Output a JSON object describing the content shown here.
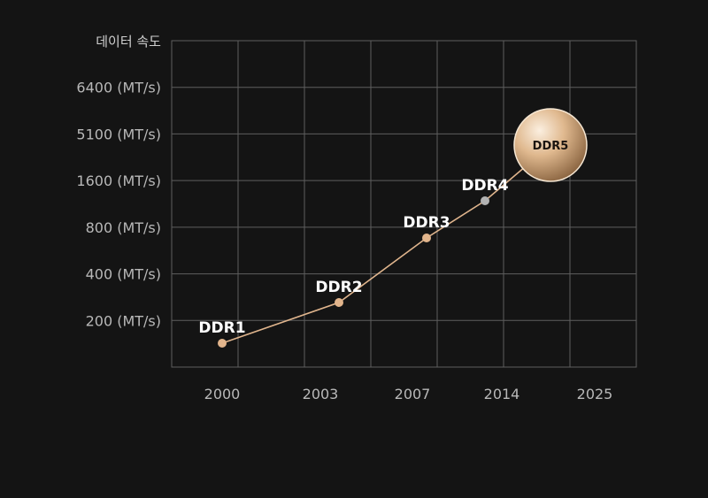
{
  "chart_data": {
    "type": "line",
    "ylabel": "데이터 속도",
    "y_ticks": [
      "200 (MT/s)",
      "400 (MT/s)",
      "800 (MT/s)",
      "1600 (MT/s)",
      "5100 (MT/s)",
      "6400 (MT/s)"
    ],
    "x_ticks": [
      "2000",
      "2003",
      "2007",
      "2014",
      "2025"
    ],
    "series": [
      {
        "points": [
          {
            "label": "DDR1",
            "x": 2000,
            "y": 200,
            "color": "#e2b58c"
          },
          {
            "label": "DDR2",
            "x": 2003,
            "y": 400,
            "color": "#e2b58c"
          },
          {
            "label": "DDR3",
            "x": 2007,
            "y": 800,
            "color": "#e2b58c"
          },
          {
            "label": "DDR4",
            "x": 2014,
            "y": 1600,
            "color": "#b3b3b3"
          },
          {
            "label": "DDR5",
            "x": 2020,
            "y": 5100,
            "color": "#e6c39a",
            "highlight": true
          }
        ]
      }
    ],
    "line_color": "#e0b58d",
    "grid": true
  }
}
